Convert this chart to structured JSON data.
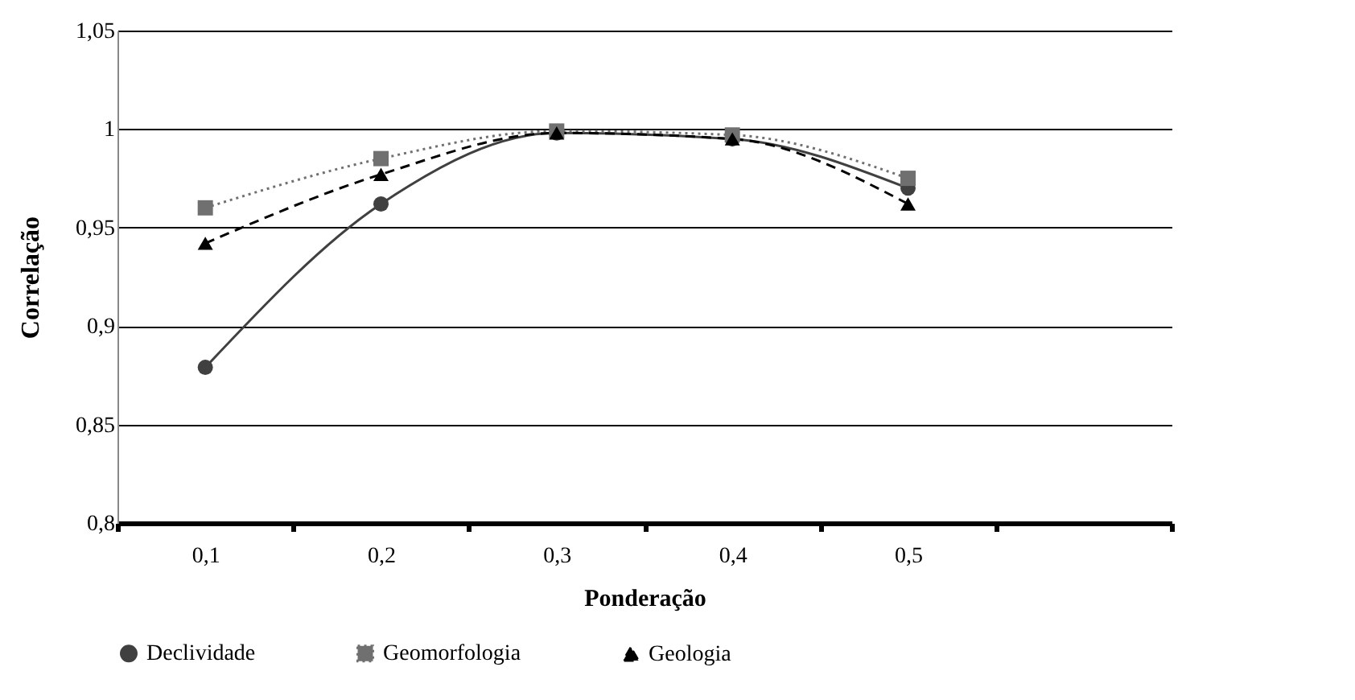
{
  "chart_data": {
    "type": "line",
    "xlabel": "Ponderação",
    "ylabel": "Correlação",
    "categories": [
      "0,1",
      "0,2",
      "0,3",
      "0,4",
      "0,5",
      null
    ],
    "series": [
      {
        "name": "Declividade",
        "color": "#404040",
        "marker": "circle",
        "line_style": "solid",
        "values": [
          0.879,
          0.962,
          0.998,
          0.995,
          0.97,
          null
        ]
      },
      {
        "name": "Geomorfologia",
        "color": "#707070",
        "marker": "square",
        "line_style": "dotted",
        "values": [
          0.96,
          0.985,
          0.999,
          0.997,
          0.975,
          null
        ]
      },
      {
        "name": "Geologia",
        "color": "#000000",
        "marker": "triangle",
        "line_style": "dashed",
        "values": [
          0.942,
          0.977,
          0.998,
          0.995,
          0.962,
          null
        ]
      }
    ],
    "ylim": [
      0.8,
      1.05
    ],
    "yticks": [
      {
        "value": 0.8,
        "label": "0,8"
      },
      {
        "value": 0.85,
        "label": "0,85"
      },
      {
        "value": 0.9,
        "label": "0,9"
      },
      {
        "value": 0.95,
        "label": "0,95"
      },
      {
        "value": 1,
        "label": "1"
      },
      {
        "value": 1.05,
        "label": "1,05"
      }
    ],
    "grid": "y",
    "legend": "bottom"
  }
}
